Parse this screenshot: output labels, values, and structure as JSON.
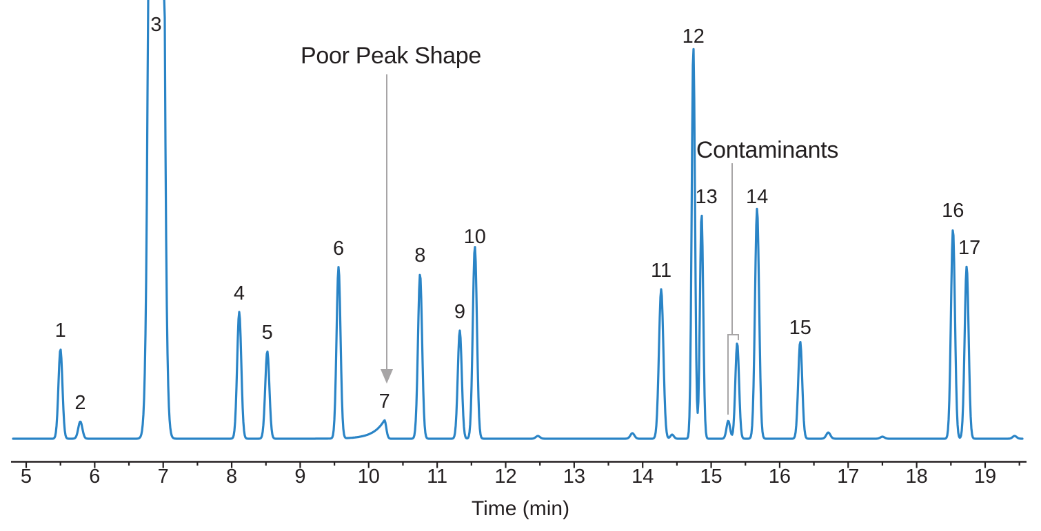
{
  "figure": {
    "background": "#ffffff",
    "trace_color": "#2a84c6",
    "text_color": "#231f20",
    "annotation_line_color": "#a7a5a6"
  },
  "chart_data": {
    "type": "line",
    "title": "",
    "xlabel": "Time (min)",
    "ylabel": "",
    "legend": "none",
    "grid": false,
    "x_axis": {
      "unit": "min",
      "min": 5,
      "max": 19.5,
      "major_ticks": [
        5,
        6,
        7,
        8,
        9,
        10,
        11,
        12,
        13,
        14,
        15,
        16,
        17,
        18,
        19
      ],
      "minor_tick_interval": 0.5
    },
    "y_axis": {
      "visible": false,
      "note": "detector response, arbitrary units (1 unit = 1 px); peak 3 off-scale"
    },
    "peaks": [
      {
        "label": "1",
        "time_min": 5.5,
        "intensity": 130,
        "sigma_min": 0.029
      },
      {
        "label": "2",
        "time_min": 5.79,
        "intensity": 25,
        "sigma_min": 0.03
      },
      {
        "label": "3",
        "time_min": 6.9,
        "intensity": 5000,
        "sigma_min": 0.06,
        "off_scale": true
      },
      {
        "label": "4",
        "time_min": 8.11,
        "intensity": 184,
        "sigma_min": 0.03
      },
      {
        "label": "5",
        "time_min": 8.52,
        "intensity": 127,
        "sigma_min": 0.03
      },
      {
        "label": "6",
        "time_min": 9.56,
        "intensity": 249,
        "sigma_min": 0.029
      },
      {
        "label": "7",
        "time_min": 10.23,
        "intensity": 27,
        "sigma_min": 0.026,
        "shape": "fronting",
        "tau_min": 0.16
      },
      {
        "label": "8",
        "time_min": 10.75,
        "intensity": 239,
        "sigma_min": 0.03
      },
      {
        "label": "9",
        "time_min": 11.33,
        "intensity": 157,
        "sigma_min": 0.029
      },
      {
        "label": "10",
        "time_min": 11.55,
        "intensity": 279,
        "sigma_min": 0.03
      },
      {
        "label": "11",
        "time_min": 14.27,
        "intensity": 217,
        "sigma_min": 0.032
      },
      {
        "label": "12",
        "time_min": 14.74,
        "intensity": 569,
        "sigma_min": 0.024
      },
      {
        "label": "13",
        "time_min": 14.86,
        "intensity": 327,
        "sigma_min": 0.024
      },
      {
        "label": null,
        "group": "contaminant",
        "time_min": 15.25,
        "intensity": 26,
        "sigma_min": 0.026
      },
      {
        "label": null,
        "group": "contaminant",
        "time_min": 15.38,
        "intensity": 139,
        "sigma_min": 0.027
      },
      {
        "label": "14",
        "time_min": 15.67,
        "intensity": 334,
        "sigma_min": 0.03
      },
      {
        "label": "15",
        "time_min": 16.3,
        "intensity": 141,
        "sigma_min": 0.029
      },
      {
        "label": "16",
        "time_min": 18.53,
        "intensity": 304,
        "sigma_min": 0.029
      },
      {
        "label": "17",
        "time_min": 18.73,
        "intensity": 250,
        "sigma_min": 0.029
      }
    ],
    "baseline_blips": [
      {
        "time_min": 12.47,
        "intensity": 4,
        "sigma_min": 0.03
      },
      {
        "time_min": 13.85,
        "intensity": 8,
        "sigma_min": 0.03
      },
      {
        "time_min": 14.43,
        "intensity": 6,
        "sigma_min": 0.025
      },
      {
        "time_min": 16.71,
        "intensity": 9,
        "sigma_min": 0.03
      },
      {
        "time_min": 17.5,
        "intensity": 3,
        "sigma_min": 0.03
      },
      {
        "time_min": 19.43,
        "intensity": 4,
        "sigma_min": 0.03
      }
    ],
    "annotations": [
      {
        "id": "poor-peak-shape",
        "text": "Poor Peak Shape",
        "type": "arrow",
        "points_at_peak": "7",
        "time_min": 10.26
      },
      {
        "id": "contaminants",
        "text": "Contaminants",
        "type": "bracket",
        "time_range_min": [
          15.25,
          15.4
        ]
      }
    ]
  }
}
